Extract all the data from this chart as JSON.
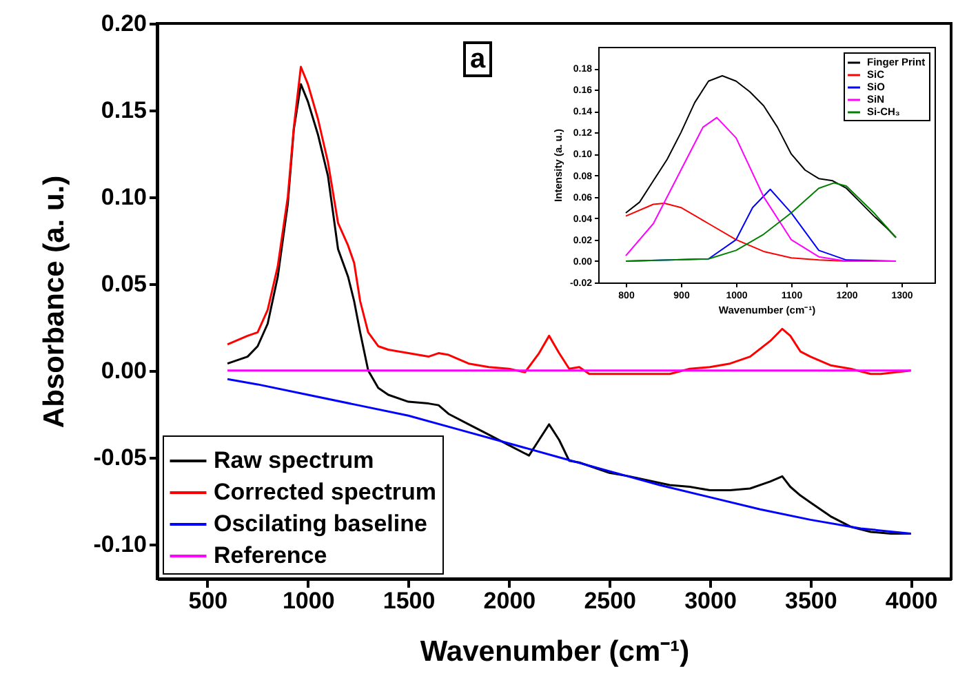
{
  "chart_data": [
    {
      "type": "line",
      "xlabel": "Wavenumber (cm⁻¹)",
      "ylabel": "Absorbance (a. u.)",
      "annotations": [
        "a"
      ],
      "xlim": [
        250,
        4200
      ],
      "xticks": [
        500,
        1000,
        1500,
        2000,
        2500,
        3000,
        3500,
        4000
      ],
      "ylim": [
        -0.12,
        0.2
      ],
      "yticks": [
        {
          "value": -0.1,
          "label": "-0.10"
        },
        -0.05,
        {
          "value": 0,
          "label": "0.00"
        },
        0.05,
        {
          "value": 0.1,
          "label": "0.10"
        },
        0.15,
        {
          "value": 0.2,
          "label": "0.20"
        }
      ],
      "legend": "bottom left",
      "line_style": "solid",
      "series": [
        {
          "name": "Raw spectrum",
          "color": "#000000",
          "x": [
            600,
            700,
            750,
            800,
            850,
            900,
            930,
            965,
            1000,
            1050,
            1100,
            1150,
            1200,
            1230,
            1260,
            1300,
            1350,
            1400,
            1500,
            1600,
            1650,
            1700,
            1800,
            1900,
            2000,
            2100,
            2150,
            2200,
            2250,
            2300,
            2350,
            2400,
            2500,
            2600,
            2800,
            2900,
            3000,
            3100,
            3200,
            3300,
            3360,
            3400,
            3450,
            3500,
            3600,
            3700,
            3800,
            3900,
            4000
          ],
          "values": [
            0.004,
            0.008,
            0.014,
            0.027,
            0.054,
            0.096,
            0.139,
            0.165,
            0.155,
            0.136,
            0.112,
            0.07,
            0.054,
            0.04,
            0.022,
            0,
            -0.01,
            -0.014,
            -0.018,
            -0.019,
            -0.02,
            -0.025,
            -0.031,
            -0.037,
            -0.043,
            -0.049,
            -0.04,
            -0.031,
            -0.04,
            -0.052,
            -0.053,
            -0.055,
            -0.059,
            -0.061,
            -0.066,
            -0.067,
            -0.069,
            -0.069,
            -0.068,
            -0.064,
            -0.061,
            -0.067,
            -0.072,
            -0.076,
            -0.084,
            -0.09,
            -0.093,
            -0.094,
            -0.094
          ]
        },
        {
          "name": "Corrected spectrum",
          "color": "#ff0000",
          "x": [
            600,
            700,
            750,
            800,
            850,
            900,
            930,
            965,
            1000,
            1050,
            1100,
            1150,
            1200,
            1230,
            1260,
            1300,
            1350,
            1400,
            1500,
            1600,
            1650,
            1700,
            1800,
            1900,
            2000,
            2080,
            2150,
            2200,
            2250,
            2300,
            2350,
            2400,
            2600,
            2800,
            2900,
            3000,
            3100,
            3200,
            3300,
            3360,
            3400,
            3450,
            3500,
            3600,
            3700,
            3800,
            3850,
            4000
          ],
          "values": [
            0.015,
            0.02,
            0.022,
            0.035,
            0.06,
            0.1,
            0.14,
            0.175,
            0.165,
            0.145,
            0.12,
            0.085,
            0.072,
            0.062,
            0.04,
            0.022,
            0.014,
            0.012,
            0.01,
            0.008,
            0.01,
            0.009,
            0.004,
            0.002,
            0.001,
            -0.001,
            0.01,
            0.02,
            0.01,
            0.001,
            0.002,
            -0.002,
            -0.002,
            -0.002,
            0.001,
            0.002,
            0.004,
            0.008,
            0.017,
            0.024,
            0.02,
            0.011,
            0.008,
            0.003,
            0.001,
            -0.002,
            -0.002,
            0
          ]
        },
        {
          "name": "Oscilating baseline",
          "color": "#0000ff",
          "x": [
            600,
            750,
            1000,
            1250,
            1500,
            1750,
            2000,
            2250,
            2500,
            2750,
            3000,
            3250,
            3500,
            3750,
            4000
          ],
          "values": [
            -0.005,
            -0.008,
            -0.014,
            -0.02,
            -0.026,
            -0.034,
            -0.042,
            -0.05,
            -0.058,
            -0.066,
            -0.073,
            -0.08,
            -0.086,
            -0.091,
            -0.094
          ]
        },
        {
          "name": "Reference",
          "color": "#ff00ff",
          "x": [
            600,
            4000
          ],
          "values": [
            0,
            0
          ]
        }
      ]
    },
    {
      "type": "line",
      "xlabel": "Wavenumber (cm⁻¹)",
      "ylabel": "Intensity (a. u.)",
      "xlim": [
        750,
        1360
      ],
      "xticks": [
        800,
        900,
        1000,
        1100,
        1200,
        1300
      ],
      "ylim": [
        -0.02,
        0.2
      ],
      "yticks": [
        -0.02,
        {
          "value": 0,
          "label": "0.00"
        },
        0.02,
        0.04,
        0.06,
        0.08,
        {
          "value": 0.1,
          "label": "0.10"
        },
        0.12,
        0.14,
        0.16,
        0.18
      ],
      "legend": "top right",
      "line_style": "solid",
      "series": [
        {
          "name": "Finger Print",
          "color": "#000000",
          "x": [
            800,
            825,
            850,
            875,
            900,
            925,
            950,
            975,
            1000,
            1025,
            1050,
            1075,
            1100,
            1125,
            1150,
            1175,
            1200,
            1225,
            1250,
            1275,
            1290
          ],
          "values": [
            0.045,
            0.055,
            0.075,
            0.095,
            0.12,
            0.148,
            0.168,
            0.173,
            0.168,
            0.158,
            0.145,
            0.125,
            0.1,
            0.085,
            0.077,
            0.075,
            0.068,
            0.055,
            0.042,
            0.03,
            0.022
          ]
        },
        {
          "name": "SiC",
          "color": "#ff0000",
          "x": [
            800,
            850,
            870,
            900,
            950,
            1000,
            1050,
            1100,
            1150,
            1200,
            1290
          ],
          "values": [
            0.042,
            0.053,
            0.054,
            0.05,
            0.035,
            0.02,
            0.009,
            0.003,
            0.001,
            0,
            0
          ]
        },
        {
          "name": "SiO",
          "color": "#0000ff",
          "x": [
            800,
            950,
            1000,
            1030,
            1062,
            1100,
            1150,
            1200,
            1290
          ],
          "values": [
            0,
            0.002,
            0.02,
            0.05,
            0.067,
            0.045,
            0.01,
            0.001,
            0
          ]
        },
        {
          "name": "SiN",
          "color": "#ff00ff",
          "x": [
            800,
            850,
            900,
            940,
            965,
            1000,
            1050,
            1100,
            1150,
            1200,
            1290
          ],
          "values": [
            0.005,
            0.035,
            0.085,
            0.125,
            0.134,
            0.115,
            0.06,
            0.02,
            0.004,
            0,
            0
          ]
        },
        {
          "name": "Si-CH₃",
          "color": "#008000",
          "x": [
            800,
            950,
            1000,
            1050,
            1100,
            1150,
            1178,
            1200,
            1250,
            1290
          ],
          "values": [
            0,
            0.002,
            0.01,
            0.025,
            0.045,
            0.068,
            0.073,
            0.07,
            0.045,
            0.022
          ]
        }
      ]
    }
  ]
}
